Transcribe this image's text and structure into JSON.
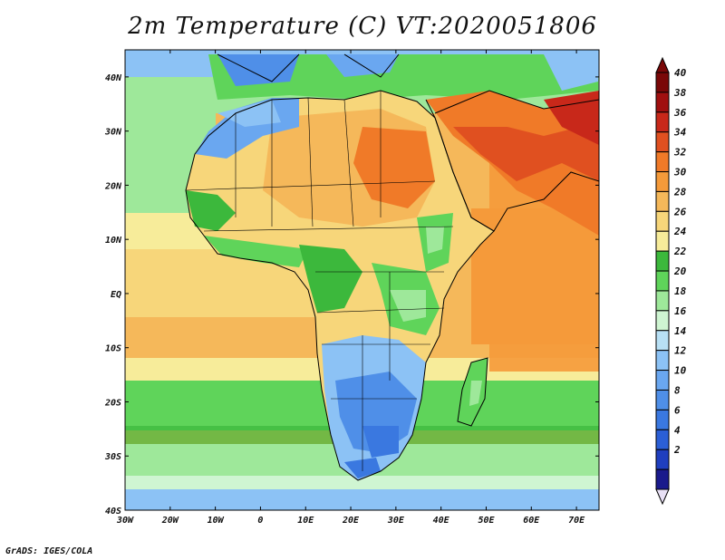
{
  "title": "2m Temperature (C) VT:2020051806",
  "footer": "GrADS: IGES/COLA",
  "map": {
    "lon_range": [
      -30,
      75
    ],
    "lat_range": [
      -40,
      45
    ],
    "lon_ticks": [
      "30W",
      "20W",
      "10W",
      "0",
      "10E",
      "20E",
      "30E",
      "40E",
      "50E",
      "60E",
      "70E"
    ],
    "lon_values": [
      -30,
      -20,
      -10,
      0,
      10,
      20,
      30,
      40,
      50,
      60,
      70
    ],
    "lat_ticks": [
      "40N",
      "30N",
      "20N",
      "10N",
      "EQ",
      "10S",
      "20S",
      "30S",
      "40S"
    ],
    "lat_values": [
      40,
      30,
      20,
      10,
      0,
      -10,
      -20,
      -30,
      -40
    ]
  },
  "colorbar": {
    "labels": [
      "2",
      "4",
      "6",
      "8",
      "10",
      "12",
      "14",
      "16",
      "18",
      "20",
      "22",
      "24",
      "26",
      "28",
      "30",
      "32",
      "34",
      "36",
      "38",
      "40"
    ],
    "colors": [
      "#1a1a8c",
      "#1f3fbf",
      "#2b5fd6",
      "#3a78e0",
      "#4f8fe8",
      "#6aa7f0",
      "#8cc2f5",
      "#b8e0f5",
      "#cff5d2",
      "#9ee89a",
      "#5fd45a",
      "#3cb83c",
      "#f7ec9a",
      "#f7d67a",
      "#f5b85a",
      "#f59a3a",
      "#f07a28",
      "#e05020",
      "#c8281a",
      "#a01010",
      "#7a0808"
    ],
    "low_color": "#e8e0f5"
  }
}
